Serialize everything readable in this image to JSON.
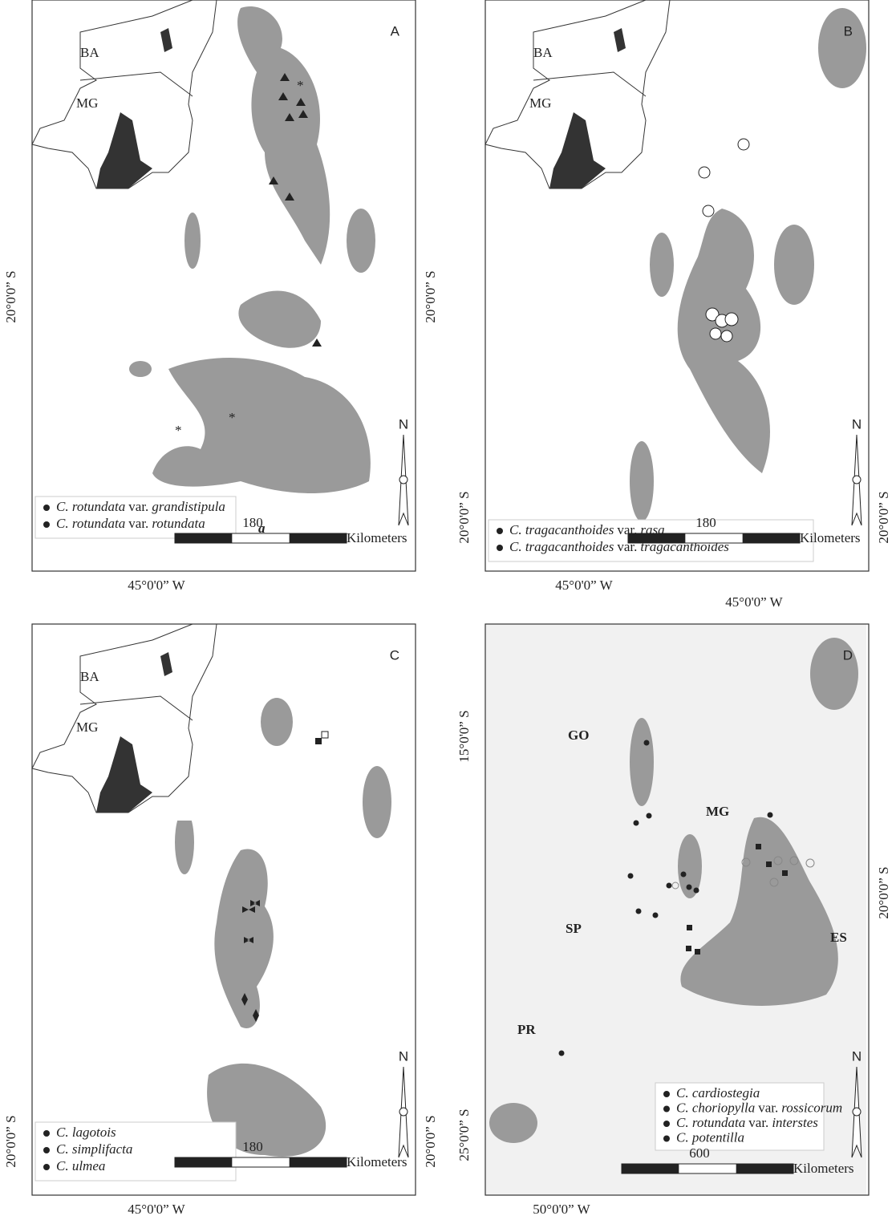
{
  "panels": [
    {
      "letter": "A",
      "inset": [
        "BA",
        "MG"
      ],
      "coords": {
        "left": "20°0'0” S",
        "right": "20°0'0” S",
        "bottom": "45°0'0” W"
      },
      "legend": [
        {
          "name": "C. rotundata",
          "rank": "var.",
          "variety": "grandistipula"
        },
        {
          "name": "C. rotundata",
          "rank": "var.",
          "variety": "rotundata"
        }
      ],
      "annotation": "a",
      "scale": {
        "label": "180",
        "unit": "Kilometers"
      },
      "north": "N"
    },
    {
      "letter": "B",
      "inset": [
        "BA",
        "MG"
      ],
      "coords": {
        "left": "20°0'0” S",
        "right": "20°0'0” S",
        "bottom": "45°0'0” W",
        "bottom_2": "45°0'0” W"
      },
      "legend": [
        {
          "name": "C. tragacanthoides",
          "rank": "var.",
          "variety": "rasa"
        },
        {
          "name": "C. tragacanthoides",
          "rank": "var.",
          "variety": "tragacanthoides"
        }
      ],
      "scale": {
        "label": "180",
        "unit": "Kilometers"
      },
      "north": "N"
    },
    {
      "letter": "C",
      "inset": [
        "BA",
        "MG"
      ],
      "coords": {
        "left": "20°0'0” S",
        "right": "20°0'0” S",
        "bottom": "45°0'0” W"
      },
      "legend": [
        {
          "name": "C. lagotois"
        },
        {
          "name": "C. simplifacta"
        },
        {
          "name": "C. ulmea"
        }
      ],
      "scale": {
        "label": "180",
        "unit": "Kilometers"
      },
      "north": "N"
    },
    {
      "letter": "D",
      "states": [
        "GO",
        "MG",
        "SP",
        "ES",
        "PR"
      ],
      "coords": {
        "left": "15°0'0” S",
        "left_2": "25°0'0” S",
        "right": "20°0'0” S",
        "bottom": "50°0'0” W"
      },
      "legend": [
        {
          "name": "C. cardiostegia"
        },
        {
          "name": "C. choriopylla",
          "rank": "var.",
          "variety": "rossicorum"
        },
        {
          "name": "C. rotundata",
          "rank": "var.",
          "variety": "interstes"
        },
        {
          "name": "C. potentilla"
        }
      ],
      "scale": {
        "label": "600",
        "unit": "Kilometers"
      },
      "north": "N"
    }
  ]
}
